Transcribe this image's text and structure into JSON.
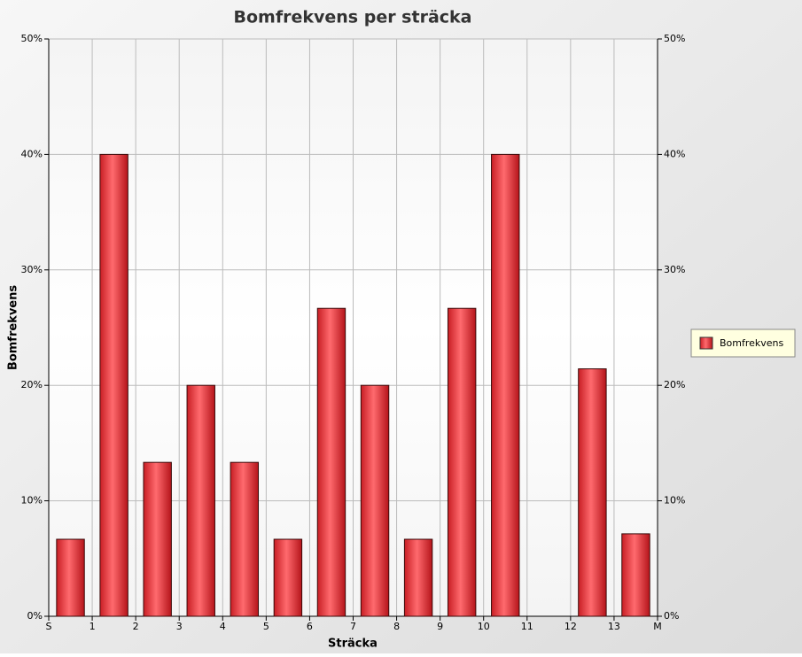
{
  "chart_data": {
    "type": "bar",
    "title": "Bomfrekvens per sträcka",
    "x_label": "Sträcka",
    "y_label": "Bomfrekvens",
    "series": [
      {
        "name": "Bomfrekvens",
        "color": "#ff4a4f",
        "values": [
          6.67,
          40,
          13.33,
          20,
          13.33,
          6.67,
          26.67,
          20,
          6.67,
          26.67,
          40,
          0,
          21.43,
          7.14
        ]
      }
    ],
    "xlim": [
      0,
      14
    ],
    "xticks": [
      {
        "value": 0,
        "label": "S"
      },
      1,
      2,
      3,
      4,
      5,
      6,
      7,
      8,
      9,
      10,
      11,
      12,
      13,
      {
        "value": 14,
        "label": "M"
      }
    ],
    "ylim": [
      0,
      50
    ],
    "yticks": [
      {
        "value": 0,
        "label": "0%"
      },
      {
        "value": 10,
        "label": "10%"
      },
      {
        "value": 20,
        "label": "20%"
      },
      {
        "value": 30,
        "label": "30%"
      },
      {
        "value": 40,
        "label": "40%"
      },
      {
        "value": 50,
        "label": "50%"
      }
    ],
    "grid": true,
    "legend": "right"
  }
}
